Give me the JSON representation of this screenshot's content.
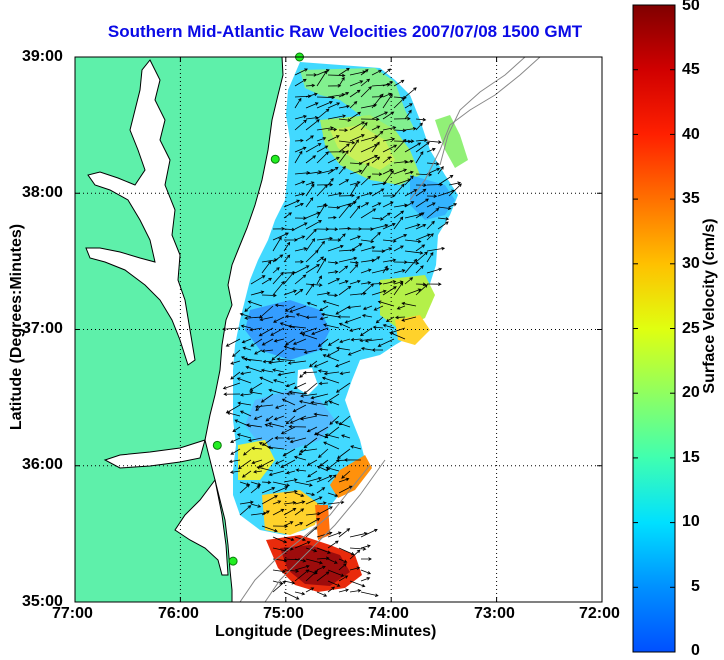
{
  "title": "Southern Mid-Atlantic Raw Velocities 2007/07/08 1500 GMT",
  "x_axis": {
    "label": "Longitude (Degrees:Minutes)",
    "ticks": [
      "77:00",
      "76:00",
      "75:00",
      "74:00",
      "73:00",
      "72:00"
    ]
  },
  "y_axis": {
    "label": "Latitude (Degrees:Minutes)",
    "ticks": [
      "39:00",
      "38:00",
      "37:00",
      "36:00",
      "35:00"
    ]
  },
  "colorbar": {
    "label": "Surface Velocity (cm/s)",
    "ticks": [
      "50",
      "45",
      "40",
      "35",
      "30",
      "25",
      "20",
      "15",
      "10",
      "5",
      "0"
    ],
    "range": [
      0,
      50
    ]
  },
  "colors": {
    "land": "#5ef0aa",
    "title": "#0a0ae6",
    "station": "#22ee22"
  },
  "chart_data": {
    "type": "map-vector-field",
    "lon_range": [
      -77,
      -72
    ],
    "lat_range": [
      35,
      39
    ],
    "grid": true,
    "stations": [
      {
        "lon": -74.87,
        "lat": 39.0
      },
      {
        "lon": -75.1,
        "lat": 38.25
      },
      {
        "lon": -75.65,
        "lat": 36.15
      },
      {
        "lon": -75.5,
        "lat": 35.3
      }
    ]
  }
}
